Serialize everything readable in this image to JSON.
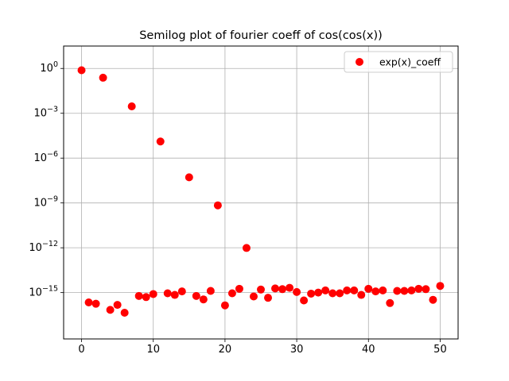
{
  "chart_data": {
    "type": "scatter",
    "title": "Semilog plot of fourier coeff of cos(cos(x))",
    "xlabel": "",
    "ylabel": "",
    "y_scale": "log",
    "grid": true,
    "xlim": [
      -2.5,
      52.5
    ],
    "ylim_log10": [
      -18.1,
      1.5
    ],
    "x_ticks": [
      0,
      10,
      20,
      30,
      40,
      50
    ],
    "x_tick_labels": [
      "0",
      "10",
      "20",
      "30",
      "40",
      "50"
    ],
    "y_ticks_log10": [
      0,
      -3,
      -6,
      -9,
      -12,
      -15
    ],
    "y_tick_labels": [
      {
        "base": "10",
        "exp": "0"
      },
      {
        "base": "10",
        "exp": "−3"
      },
      {
        "base": "10",
        "exp": "−6"
      },
      {
        "base": "10",
        "exp": "−9"
      },
      {
        "base": "10",
        "exp": "−12"
      },
      {
        "base": "10",
        "exp": "−15"
      }
    ],
    "legend": {
      "placement": "top-right"
    },
    "series": [
      {
        "name": "exp(x)_coeff",
        "color": "#ff0000",
        "x": [
          0,
          1,
          2,
          3,
          4,
          5,
          6,
          7,
          8,
          9,
          10,
          11,
          12,
          13,
          14,
          15,
          16,
          17,
          18,
          19,
          20,
          21,
          22,
          23,
          24,
          25,
          26,
          27,
          28,
          29,
          30,
          31,
          32,
          33,
          34,
          35,
          36,
          37,
          38,
          39,
          40,
          41,
          42,
          43,
          44,
          45,
          46,
          47,
          48,
          49,
          50
        ],
        "y": [
          0.76,
          2.2e-16,
          1.8e-16,
          0.24,
          7e-17,
          1.5e-16,
          4.5e-17,
          0.0029,
          6e-16,
          5e-16,
          8e-16,
          1.3e-05,
          9e-16,
          7e-16,
          1.2e-15,
          5.2e-08,
          6e-16,
          3.5e-16,
          1.3e-15,
          6.9e-10,
          1.4e-16,
          9e-16,
          1.8e-15,
          9.7e-13,
          5.5e-16,
          1.6e-15,
          4.5e-16,
          1.9e-15,
          1.7e-15,
          2.1e-15,
          1.1e-15,
          3e-16,
          8.5e-16,
          1e-15,
          1.4e-15,
          9e-16,
          9e-16,
          1.4e-15,
          1.4e-15,
          7e-16,
          1.8e-15,
          1.2e-15,
          1.4e-15,
          2e-16,
          1.3e-15,
          1.3e-15,
          1.4e-15,
          1.8e-15,
          1.7e-15,
          3.3e-16,
          2.8e-15
        ]
      }
    ]
  }
}
